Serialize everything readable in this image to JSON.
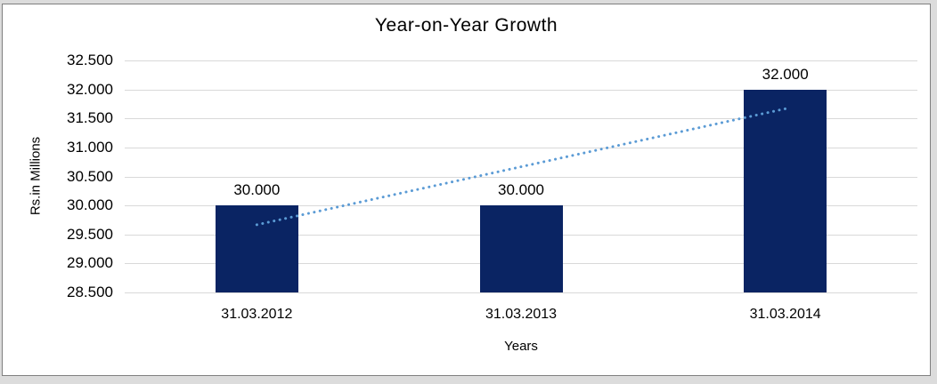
{
  "page": {
    "background": "#dcdcdc",
    "panel_background": "#ffffff",
    "panel_border": "#7f7f7f"
  },
  "chart_data": {
    "type": "bar",
    "title": "Year-on-Year Growth",
    "xlabel": "Years",
    "ylabel": "Rs.in Millions",
    "categories": [
      "31.03.2012",
      "31.03.2013",
      "31.03.2014"
    ],
    "values": [
      30.0,
      30.0,
      32.0
    ],
    "data_labels": [
      "30.000",
      "30.000",
      "32.000"
    ],
    "ylim": [
      28.5,
      32.5
    ],
    "ytick_step": 0.5,
    "ytick_labels": [
      "28.500",
      "29.000",
      "29.500",
      "30.000",
      "30.500",
      "31.000",
      "31.500",
      "32.000",
      "32.500"
    ],
    "grid": true,
    "legend": "none",
    "bar_color": "#0a2463",
    "gridline_color": "#d9d9d9",
    "text_color": "#000000",
    "trendline": {
      "type": "linear",
      "style": "dotted",
      "color": "#5b9bd5",
      "start_value": 29.667,
      "end_value": 31.667
    }
  }
}
